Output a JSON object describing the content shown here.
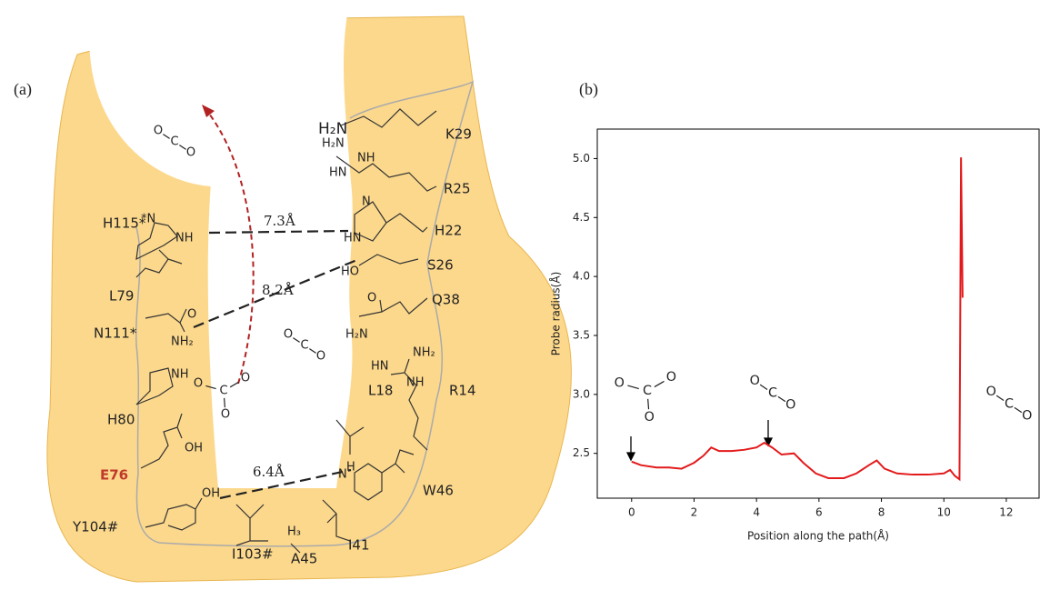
{
  "panel_a": {
    "label": "(a)",
    "residues": [
      {
        "text": "K29",
        "color": "#222222"
      },
      {
        "text": "R25",
        "color": "#222222"
      },
      {
        "text": "H22",
        "color": "#222222"
      },
      {
        "text": "S26",
        "color": "#222222"
      },
      {
        "text": "Q38",
        "color": "#222222"
      },
      {
        "text": "R14",
        "color": "#222222"
      },
      {
        "text": "L18",
        "color": "#222222"
      },
      {
        "text": "W46",
        "color": "#222222"
      },
      {
        "text": "I41",
        "color": "#222222"
      },
      {
        "text": "A45",
        "color": "#222222"
      },
      {
        "text": "I103#",
        "color": "#222222"
      },
      {
        "text": "Y104#",
        "color": "#222222"
      },
      {
        "text": "E76",
        "color": "#c0392b"
      },
      {
        "text": "H80",
        "color": "#222222"
      },
      {
        "text": "N111*",
        "color": "#222222"
      },
      {
        "text": "L79",
        "color": "#222222"
      },
      {
        "text": "H115*",
        "color": "#222222"
      }
    ],
    "distances": [
      "7.3Å",
      "8.2Å",
      "6.4Å"
    ],
    "atoms": [
      "H₂N",
      "H₂N",
      "NH",
      "HN",
      "N",
      "HN",
      "HO",
      "O",
      "H₂N",
      "NH₂",
      "HN",
      "NH",
      "H",
      "N",
      "H₃",
      "OH",
      "OH",
      "NH",
      "O",
      "NH₂",
      "*N",
      "NH"
    ],
    "molecules": [
      {
        "atoms": [
          "O",
          "C",
          "O"
        ]
      },
      {
        "atoms": [
          "O",
          "C",
          "O"
        ]
      },
      {
        "atoms": [
          "O",
          "C",
          "O",
          "O"
        ]
      }
    ]
  },
  "chart_data": {
    "type": "line",
    "label": "(b)",
    "x_label": "Position along the path(Å)",
    "y_label": "Probe radius(Å)",
    "x": [
      0,
      0.3,
      0.8,
      1.2,
      1.6,
      2.0,
      2.3,
      2.55,
      2.8,
      3.2,
      3.6,
      4.0,
      4.25,
      4.5,
      4.8,
      5.2,
      5.5,
      5.9,
      6.3,
      6.8,
      7.2,
      7.6,
      7.85,
      8.1,
      8.5,
      9.0,
      9.5,
      10.0,
      10.2,
      10.35,
      10.5,
      10.55,
      10.6
    ],
    "values": [
      2.43,
      2.4,
      2.38,
      2.38,
      2.37,
      2.42,
      2.48,
      2.55,
      2.52,
      2.52,
      2.53,
      2.55,
      2.59,
      2.55,
      2.49,
      2.5,
      2.42,
      2.33,
      2.29,
      2.29,
      2.33,
      2.4,
      2.44,
      2.37,
      2.33,
      2.32,
      2.32,
      2.33,
      2.36,
      2.31,
      2.28,
      5.01,
      3.82
    ],
    "color": "#e31a1c",
    "xlim": [
      -1.1,
      13.05
    ],
    "ylim": [
      2.12,
      5.25
    ],
    "xticks": [
      0,
      2,
      4,
      6,
      8,
      10,
      12
    ],
    "yticks": [
      {
        "value": 2.5,
        "label": "2.5"
      },
      {
        "value": 3,
        "label": "3.0"
      },
      {
        "value": 3.5,
        "label": "3.5"
      },
      {
        "value": 4,
        "label": "4.0"
      },
      {
        "value": 4.5,
        "label": "4.5"
      },
      {
        "value": 5,
        "label": "5.0"
      }
    ],
    "annotations": [
      {
        "atoms": [
          "O",
          "C",
          "O",
          "O"
        ]
      },
      {
        "atoms": [
          "O",
          "C",
          "O"
        ]
      },
      {
        "atoms": [
          "O",
          "C",
          "O"
        ]
      }
    ]
  }
}
